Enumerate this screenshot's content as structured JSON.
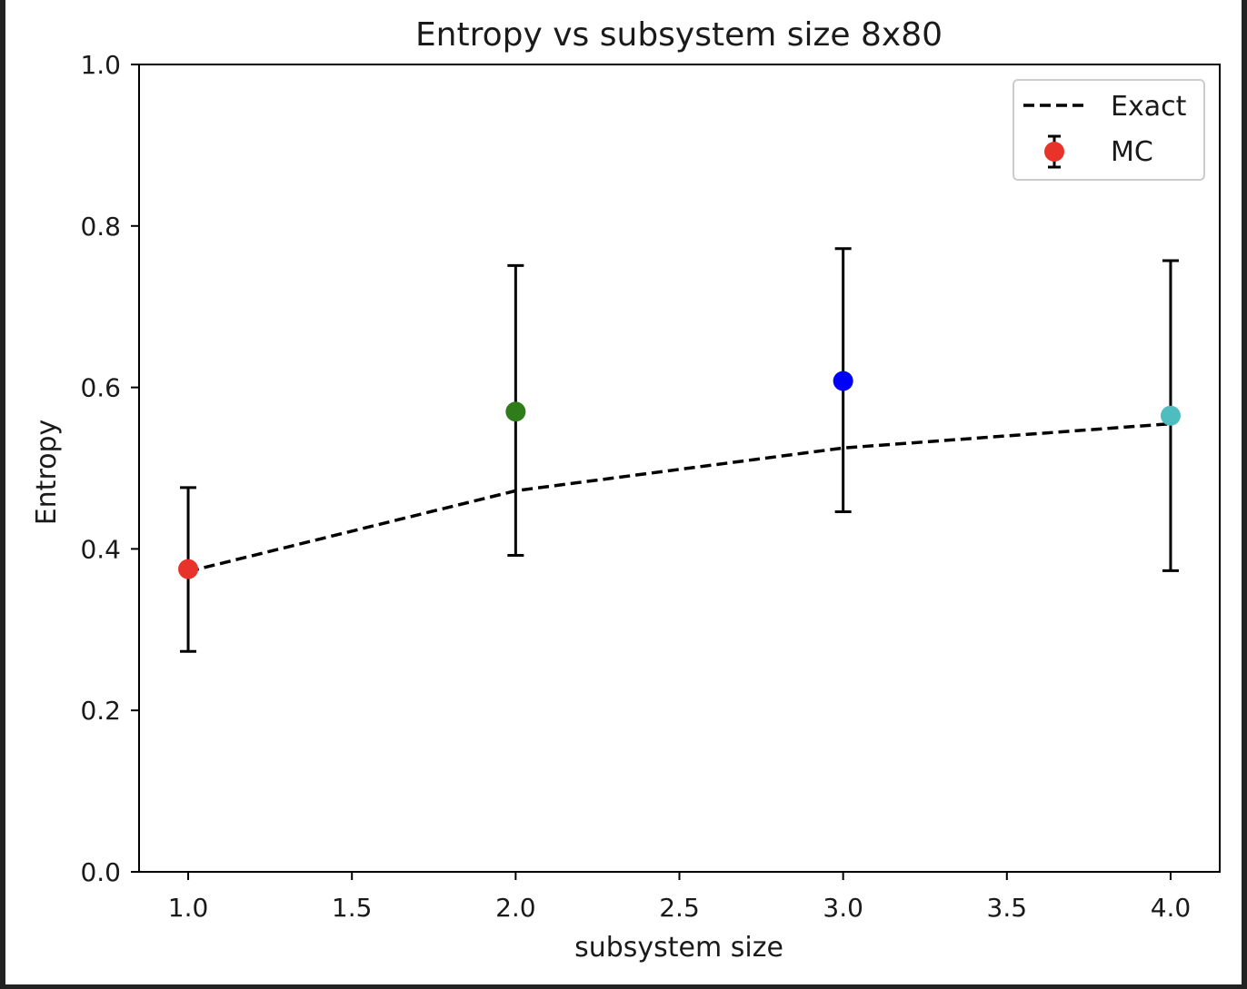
{
  "chart_data": {
    "type": "scatter",
    "title": "Entropy vs subsystem size 8x80",
    "xlabel": "subsystem size",
    "ylabel": "Entropy",
    "xlim": [
      0.85,
      4.15
    ],
    "ylim": [
      0.0,
      1.0
    ],
    "xticks": [
      "1.0",
      "1.5",
      "2.0",
      "2.5",
      "3.0",
      "3.5",
      "4.0"
    ],
    "xtick_values": [
      1.0,
      1.5,
      2.0,
      2.5,
      3.0,
      3.5,
      4.0
    ],
    "yticks": [
      "0.0",
      "0.2",
      "0.4",
      "0.6",
      "0.8",
      "1.0"
    ],
    "ytick_values": [
      0.0,
      0.2,
      0.4,
      0.6,
      0.8,
      1.0
    ],
    "grid": false,
    "legend_position": "top-right",
    "exact": {
      "name": "Exact",
      "style": "dashed",
      "color": "#000000",
      "x": [
        1,
        2,
        3,
        4
      ],
      "y": [
        0.372,
        0.472,
        0.525,
        0.555
      ]
    },
    "mc": {
      "name": "MC",
      "legend_color": "#e8332a",
      "x": [
        1,
        2,
        3,
        4
      ],
      "y": [
        0.375,
        0.57,
        0.608,
        0.565
      ],
      "yerr_low": [
        0.273,
        0.392,
        0.446,
        0.373
      ],
      "yerr_high": [
        0.476,
        0.751,
        0.772,
        0.757
      ],
      "colors": [
        "#e8332a",
        "#2e7d1a",
        "#0000ff",
        "#4dbdbf"
      ]
    }
  }
}
